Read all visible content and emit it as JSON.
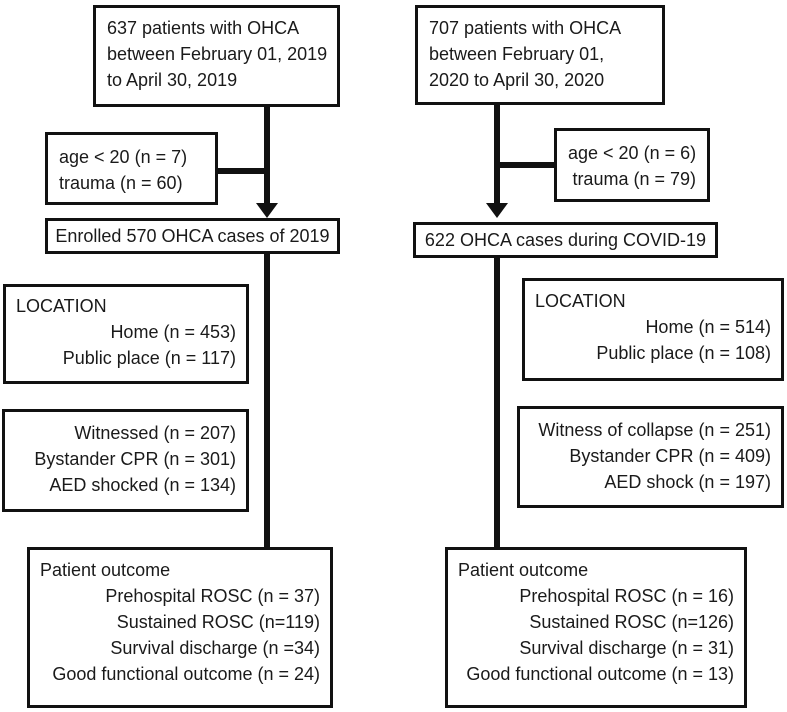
{
  "figure": {
    "background": "#ffffff",
    "line_color": "#111111",
    "text_color": "#1a1a1a",
    "left": {
      "top_box": {
        "lines": [
          "637 patients with OHCA",
          "between February 01, 2019",
          "to April 30, 2019"
        ]
      },
      "exclusion_box": {
        "lines": [
          "age < 20 (n = 7)",
          "trauma (n = 60)"
        ]
      },
      "enrolled_box": {
        "label": "Enrolled 570 OHCA cases of 2019"
      },
      "location_box": {
        "header": "LOCATION",
        "lines": [
          "Home (n = 453)",
          "Public place (n = 117)"
        ]
      },
      "witness_box": {
        "lines": [
          "Witnessed (n = 207)",
          "Bystander CPR (n = 301)",
          "AED shocked (n = 134)"
        ]
      },
      "outcome_box": {
        "header": "Patient outcome",
        "lines": [
          "Prehospital ROSC (n = 37)",
          "Sustained ROSC (n=119)",
          "Survival discharge (n =34)",
          "Good functional outcome (n = 24)"
        ]
      }
    },
    "right": {
      "top_box": {
        "lines": [
          "707 patients with OHCA",
          "between February 01,",
          "2020 to April 30, 2020"
        ]
      },
      "exclusion_box": {
        "lines": [
          "age < 20 (n = 6)",
          "trauma (n = 79)"
        ]
      },
      "enrolled_box": {
        "label": "622 OHCA cases during COVID-19"
      },
      "location_box": {
        "header": "LOCATION",
        "lines": [
          "Home (n = 514)",
          "Public place (n = 108)"
        ]
      },
      "witness_box": {
        "lines": [
          "Witness of collapse (n = 251)",
          "Bystander CPR (n = 409)",
          "AED shock (n = 197)"
        ]
      },
      "outcome_box": {
        "header": "Patient outcome",
        "lines": [
          "Prehospital ROSC (n = 16)",
          "Sustained ROSC (n=126)",
          "Survival discharge (n = 31)",
          "Good functional outcome (n = 13)"
        ]
      }
    }
  }
}
